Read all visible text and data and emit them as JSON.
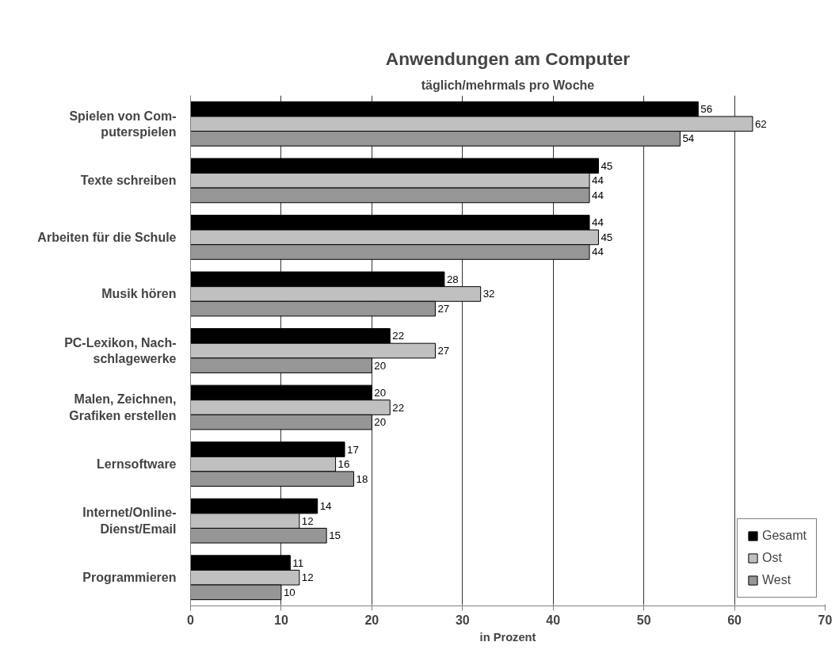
{
  "chart_data": {
    "type": "bar",
    "orientation": "horizontal",
    "title": "Anwendungen am Computer",
    "subtitle": "täglich/mehrmals pro Woche",
    "xlabel": "in Prozent",
    "categories": [
      "Spielen von Com-\nputerspielen",
      "Texte schreiben",
      "Arbeiten für die Schule",
      "Musik hören",
      "PC-Lexikon, Nach-\nschlagewerke",
      "Malen, Zeichnen,\nGrafiken erstellen",
      "Lernsoftware",
      "Internet/Online-\nDienst/Email",
      "Programmieren"
    ],
    "series": [
      {
        "name": "Gesamt",
        "color": "#000000",
        "values": [
          56,
          45,
          44,
          28,
          22,
          20,
          17,
          14,
          11
        ]
      },
      {
        "name": "Ost",
        "color": "#c0c0c0",
        "values": [
          62,
          44,
          45,
          32,
          27,
          22,
          16,
          12,
          12
        ]
      },
      {
        "name": "West",
        "color": "#969696",
        "values": [
          54,
          44,
          44,
          27,
          20,
          20,
          18,
          15,
          10
        ]
      }
    ],
    "xlim": [
      0,
      70
    ],
    "xticks": [
      0,
      10,
      20,
      30,
      40,
      50,
      60,
      70
    ],
    "grid": "x",
    "legend": "bottom right",
    "data_labels": true
  }
}
